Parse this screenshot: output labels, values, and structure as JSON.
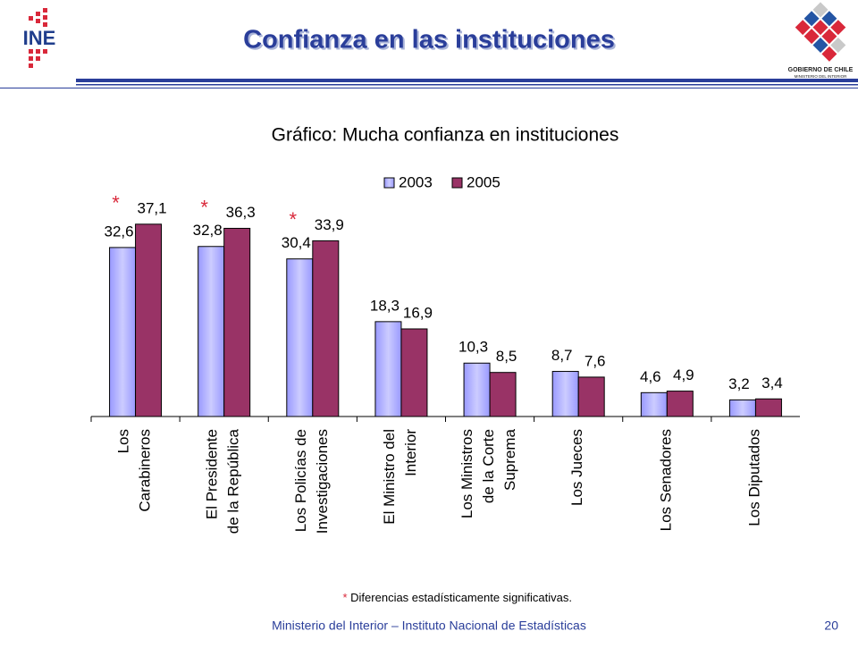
{
  "header": {
    "title": "Confianza en las instituciones",
    "left_logo": "INE",
    "right_logo_line1": "GOBIERNO DE CHILE",
    "right_logo_line2": "MINISTERIO DEL INTERIOR"
  },
  "chart_data": {
    "type": "bar",
    "title": "Gráfico: Mucha confianza en instituciones",
    "categories": [
      "Los\nCarabineros",
      "El Presidente\nde la República",
      "Los Policías de\nInvestigaciones",
      "El Ministro del\nInterior",
      "Los Ministros\nde la Corte\nSuprema",
      "Los Jueces",
      "Los Senadores",
      "Los Diputados"
    ],
    "series": [
      {
        "name": "2003",
        "color": "#9999ff",
        "values": [
          32.6,
          32.8,
          30.4,
          18.3,
          10.3,
          8.7,
          4.6,
          3.2
        ],
        "value_labels": [
          "32,6",
          "32,8",
          "30,4",
          "18,3",
          "10,3",
          "8,7",
          "4,6",
          "3,2"
        ]
      },
      {
        "name": "2005",
        "color": "#993366",
        "values": [
          37.1,
          36.3,
          33.9,
          16.9,
          8.5,
          7.6,
          4.9,
          3.4
        ],
        "value_labels": [
          "37,1",
          "36,3",
          "33,9",
          "16,9",
          "8,5",
          "7,6",
          "4,9",
          "3,4"
        ]
      }
    ],
    "significance": [
      "*",
      "*",
      "*",
      null,
      null,
      null,
      null,
      null
    ],
    "ylim": [
      0,
      50
    ],
    "legend": "top",
    "footnote": {
      "marker": "*",
      "text": "Diferencias estadísticamente significativas."
    }
  },
  "footer": {
    "text": "Ministerio del Interior – Instituto Nacional de Estadísticas",
    "page": "20"
  }
}
